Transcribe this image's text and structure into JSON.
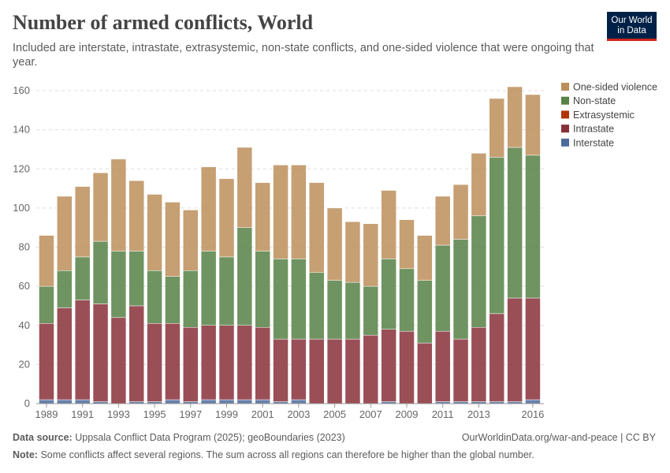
{
  "header": {
    "title": "Number of armed conflicts, World",
    "subtitle": "Included are interstate, intrastate, extrasystemic, non-state conflicts, and one-sided violence that were ongoing that year.",
    "logo": "Our World in Data"
  },
  "footer": {
    "source_label": "Data source:",
    "source": "Uppsala Conflict Data Program (2025); geoBoundaries (2023)",
    "url": "OurWorldinData.org/war-and-peace | CC BY",
    "note_label": "Note:",
    "note": "Some conflicts affect several regions. The sum across all regions can therefore be higher than the global number."
  },
  "chart_data": {
    "type": "bar",
    "stacked": true,
    "title": "Number of armed conflicts, World",
    "categories": [
      1989,
      1990,
      1991,
      1992,
      1993,
      1994,
      1995,
      1996,
      1997,
      1998,
      1999,
      2000,
      2001,
      2002,
      2003,
      2004,
      2005,
      2006,
      2007,
      2008,
      2009,
      2010,
      2011,
      2012,
      2013,
      2014,
      2015,
      2016
    ],
    "x_tick_labels": [
      "1989",
      "1991",
      "1993",
      "1995",
      "1997",
      "1999",
      "2001",
      "2003",
      "2005",
      "2007",
      "2009",
      "2011",
      "2013",
      "2016"
    ],
    "y_ticks": [
      0,
      20,
      40,
      60,
      80,
      100,
      120,
      140,
      160
    ],
    "ylim": [
      0,
      165
    ],
    "grid": true,
    "legend": "right",
    "series": [
      {
        "name": "Interstate",
        "color": "#4c6a9c",
        "values": [
          2,
          2,
          2,
          1,
          0,
          1,
          1,
          2,
          1,
          2,
          2,
          2,
          2,
          1,
          2,
          0,
          0,
          0,
          0,
          1,
          0,
          0,
          1,
          1,
          1,
          1,
          1,
          2
        ]
      },
      {
        "name": "Intrastate",
        "color": "#883039",
        "values": [
          39,
          47,
          51,
          50,
          44,
          49,
          40,
          39,
          38,
          38,
          38,
          38,
          37,
          32,
          31,
          33,
          33,
          33,
          35,
          37,
          37,
          31,
          36,
          32,
          38,
          45,
          53,
          52
        ]
      },
      {
        "name": "Extrasystemic",
        "color": "#b13507",
        "values": [
          0,
          0,
          0,
          0,
          0,
          0,
          0,
          0,
          0,
          0,
          0,
          0,
          0,
          0,
          0,
          0,
          0,
          0,
          0,
          0,
          0,
          0,
          0,
          0,
          0,
          0,
          0,
          0
        ]
      },
      {
        "name": "Non-state",
        "color": "#578145",
        "values": [
          19,
          19,
          22,
          32,
          34,
          28,
          27,
          24,
          29,
          38,
          35,
          50,
          39,
          41,
          41,
          34,
          30,
          29,
          25,
          36,
          32,
          32,
          44,
          51,
          57,
          80,
          77,
          73
        ]
      },
      {
        "name": "One-sided violence",
        "color": "#bc8e5a",
        "values": [
          26,
          38,
          36,
          35,
          47,
          36,
          39,
          38,
          31,
          43,
          40,
          41,
          35,
          48,
          48,
          46,
          37,
          31,
          32,
          35,
          25,
          23,
          25,
          28,
          32,
          30,
          31,
          31
        ]
      }
    ]
  }
}
